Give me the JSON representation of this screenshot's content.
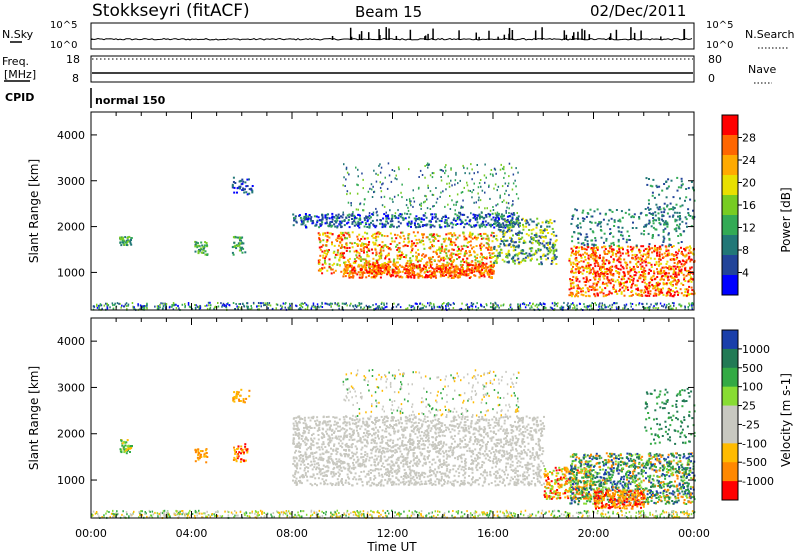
{
  "header": {
    "station": "Stokkseyri (fitACF)",
    "beam": "Beam 15",
    "date": "02/Dec/2011"
  },
  "noise_panel": {
    "left_label": "N.Sky",
    "right_label": "N.Search",
    "left_ticks": [
      "10^5",
      "10^0"
    ],
    "right_ticks": [
      "10^5",
      "10^0"
    ]
  },
  "freq_panel": {
    "left_label_1": "Freq.",
    "left_label_2": "[MHz]",
    "right_label": "Nave",
    "left_ticks": [
      "18",
      "8"
    ],
    "right_ticks": [
      "80",
      "0"
    ]
  },
  "cpid_panel": {
    "label": "CPID",
    "mode": "normal 150"
  },
  "chart_data": [
    {
      "type": "heatmap",
      "quantity": "Power",
      "ylabel": "Slant Range [km]",
      "xlabel": "",
      "ylim": [
        180,
        4500
      ],
      "yticks": [
        1000,
        2000,
        3000,
        4000
      ],
      "xticks": [
        "00:00",
        "04:00",
        "08:00",
        "12:00",
        "16:00",
        "20:00",
        "00:00"
      ],
      "colorbar": {
        "label": "Power [dB]",
        "ticks": [
          "28",
          "24",
          "20",
          "16",
          "12",
          "8",
          "4"
        ],
        "colors": [
          "#ff0000",
          "#ff6600",
          "#ffaa00",
          "#e8e000",
          "#77cc22",
          "#33aa55",
          "#227777",
          "#224499",
          "#0000ff"
        ]
      }
    },
    {
      "type": "heatmap",
      "quantity": "Velocity",
      "ylabel": "Slant Range [km]",
      "xlabel": "Time UT",
      "ylim": [
        180,
        4500
      ],
      "yticks": [
        1000,
        2000,
        3000,
        4000
      ],
      "xticks": [
        "00:00",
        "04:00",
        "08:00",
        "12:00",
        "16:00",
        "20:00",
        "00:00"
      ],
      "colorbar": {
        "label": "Velocity [m s-1]",
        "ticks": [
          "1000",
          "500",
          "100",
          "25",
          "-25",
          "-100",
          "-500",
          "-1000"
        ],
        "colors": [
          "#1a3faa",
          "#227a55",
          "#33aa44",
          "#88dd33",
          "#c8c8c0",
          "#c8c8c0",
          "#ffbb00",
          "#ff8800",
          "#ff0000"
        ]
      }
    }
  ]
}
